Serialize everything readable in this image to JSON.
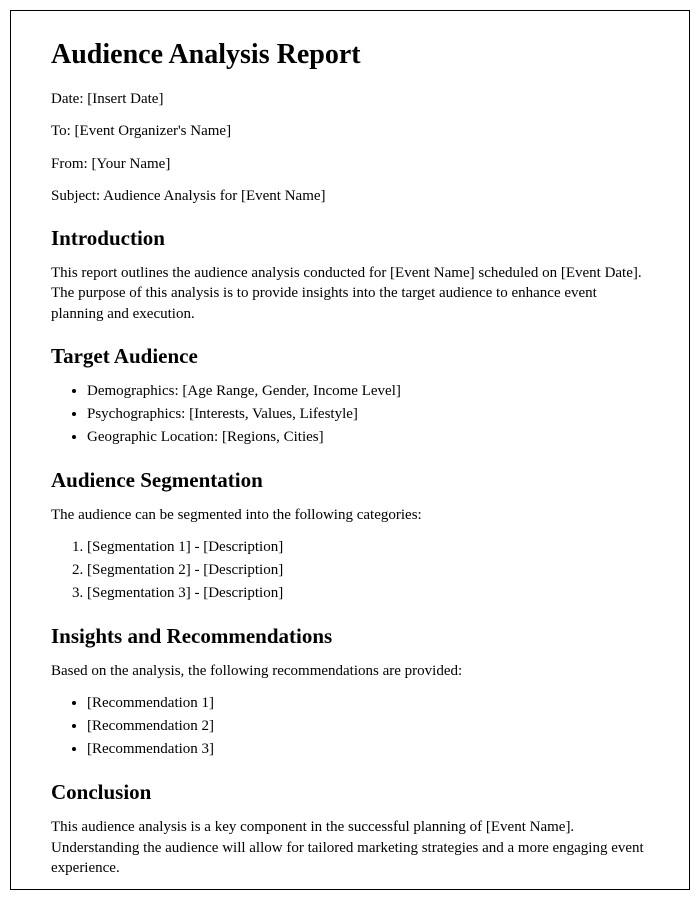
{
  "colors": {
    "text": "#000000",
    "background": "#ffffff",
    "border": "#000000"
  },
  "typography": {
    "family": "Times New Roman",
    "h1_size_pt": 21,
    "h2_size_pt": 16,
    "body_size_pt": 11
  },
  "title": "Audience Analysis Report",
  "meta": {
    "date_label": "Date:",
    "date_value": "[Insert Date]",
    "to_label": "To:",
    "to_value": "[Event Organizer's Name]",
    "from_label": "From:",
    "from_value": "[Your Name]",
    "subject_label": "Subject:",
    "subject_value": "Audience Analysis for [Event Name]"
  },
  "sections": {
    "intro": {
      "heading": "Introduction",
      "body": "This report outlines the audience analysis conducted for [Event Name] scheduled on [Event Date]. The purpose of this analysis is to provide insights into the target audience to enhance event planning and execution."
    },
    "target": {
      "heading": "Target Audience",
      "items": [
        "Demographics: [Age Range, Gender, Income Level]",
        "Psychographics: [Interests, Values, Lifestyle]",
        "Geographic Location: [Regions, Cities]"
      ]
    },
    "segmentation": {
      "heading": "Audience Segmentation",
      "lead": "The audience can be segmented into the following categories:",
      "items": [
        "[Segmentation 1] - [Description]",
        "[Segmentation 2] - [Description]",
        "[Segmentation 3] - [Description]"
      ]
    },
    "insights": {
      "heading": "Insights and Recommendations",
      "lead": "Based on the analysis, the following recommendations are provided:",
      "items": [
        "[Recommendation 1]",
        "[Recommendation 2]",
        "[Recommendation 3]"
      ]
    },
    "conclusion": {
      "heading": "Conclusion",
      "body": "This audience analysis is a key component in the successful planning of [Event Name]. Understanding the audience will allow for tailored marketing strategies and a more engaging event experience."
    }
  }
}
